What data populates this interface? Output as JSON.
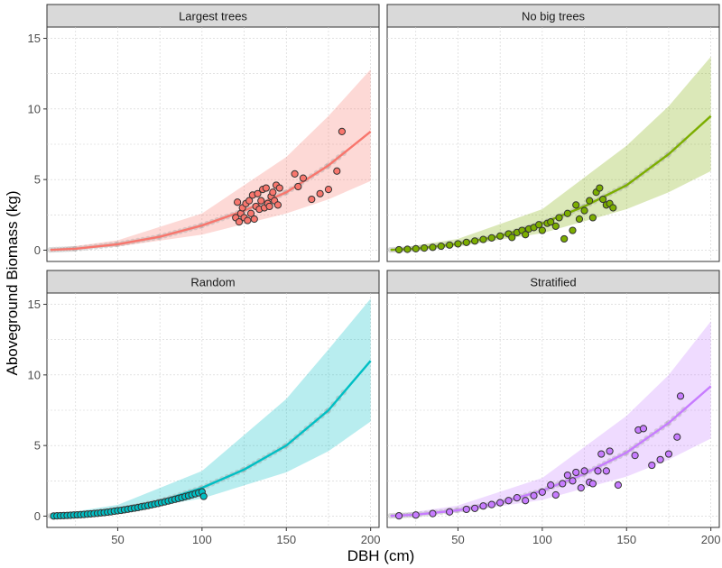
{
  "chart_data": {
    "type": "scatter",
    "xlabel": "DBH (cm)",
    "ylabel": "Aboveground Biomass (kg)",
    "xlim": [
      8,
      205
    ],
    "ylim": [
      -0.8,
      15.8
    ],
    "xticks": [
      50,
      100,
      150,
      200
    ],
    "yticks": [
      0,
      5,
      10,
      15
    ],
    "grid": true,
    "background_points_color": "#9a9a9a",
    "panels": [
      {
        "name": "Largest trees",
        "color": "#f8766d",
        "fit": [
          [
            10,
            0.02
          ],
          [
            25,
            0.1
          ],
          [
            50,
            0.42
          ],
          [
            75,
            0.95
          ],
          [
            100,
            1.75
          ],
          [
            125,
            2.8
          ],
          [
            150,
            4.1
          ],
          [
            175,
            6.0
          ],
          [
            200,
            8.4
          ]
        ],
        "band_upper": [
          [
            10,
            0.05
          ],
          [
            50,
            0.7
          ],
          [
            100,
            2.6
          ],
          [
            150,
            6.6
          ],
          [
            175,
            9.5
          ],
          [
            200,
            12.8
          ]
        ],
        "band_lower": [
          [
            10,
            0.0
          ],
          [
            50,
            0.25
          ],
          [
            100,
            1.1
          ],
          [
            150,
            2.6
          ],
          [
            175,
            3.6
          ],
          [
            200,
            4.9
          ]
        ],
        "points": [
          [
            120,
            2.3
          ],
          [
            121,
            3.4
          ],
          [
            122,
            2.0
          ],
          [
            123,
            2.6
          ],
          [
            124,
            3.0
          ],
          [
            125,
            2.3
          ],
          [
            126,
            3.3
          ],
          [
            127,
            2.1
          ],
          [
            128,
            3.5
          ],
          [
            129,
            2.6
          ],
          [
            130,
            3.9
          ],
          [
            131,
            2.2
          ],
          [
            132,
            3.1
          ],
          [
            133,
            4.0
          ],
          [
            134,
            2.9
          ],
          [
            135,
            3.5
          ],
          [
            136,
            4.3
          ],
          [
            137,
            3.0
          ],
          [
            138,
            4.4
          ],
          [
            139,
            3.3
          ],
          [
            140,
            3.1
          ],
          [
            141,
            3.8
          ],
          [
            142,
            4.1
          ],
          [
            143,
            3.5
          ],
          [
            144,
            4.6
          ],
          [
            145,
            3.2
          ],
          [
            146,
            4.4
          ],
          [
            155,
            5.4
          ],
          [
            157,
            4.5
          ],
          [
            160,
            5.1
          ],
          [
            165,
            3.6
          ],
          [
            170,
            4.0
          ],
          [
            175,
            4.3
          ],
          [
            180,
            5.6
          ],
          [
            183,
            8.4
          ]
        ]
      },
      {
        "name": "No big trees",
        "color": "#7cae00",
        "fit": [
          [
            10,
            0.02
          ],
          [
            25,
            0.1
          ],
          [
            50,
            0.45
          ],
          [
            75,
            1.0
          ],
          [
            100,
            1.9
          ],
          [
            125,
            3.1
          ],
          [
            150,
            4.6
          ],
          [
            175,
            6.8
          ],
          [
            200,
            9.5
          ]
        ],
        "band_upper": [
          [
            10,
            0.05
          ],
          [
            50,
            0.8
          ],
          [
            100,
            2.9
          ],
          [
            150,
            7.4
          ],
          [
            175,
            10.2
          ],
          [
            200,
            13.7
          ]
        ],
        "band_lower": [
          [
            10,
            0.0
          ],
          [
            50,
            0.28
          ],
          [
            100,
            1.2
          ],
          [
            150,
            2.9
          ],
          [
            175,
            4.1
          ],
          [
            200,
            5.6
          ]
        ],
        "points": [
          [
            15,
            0.03
          ],
          [
            20,
            0.06
          ],
          [
            25,
            0.1
          ],
          [
            30,
            0.15
          ],
          [
            35,
            0.2
          ],
          [
            40,
            0.28
          ],
          [
            45,
            0.36
          ],
          [
            50,
            0.45
          ],
          [
            55,
            0.55
          ],
          [
            60,
            0.65
          ],
          [
            65,
            0.76
          ],
          [
            70,
            0.87
          ],
          [
            75,
            1.0
          ],
          [
            80,
            1.15
          ],
          [
            82,
            0.9
          ],
          [
            85,
            1.25
          ],
          [
            88,
            1.4
          ],
          [
            90,
            1.1
          ],
          [
            92,
            1.5
          ],
          [
            95,
            1.6
          ],
          [
            98,
            1.8
          ],
          [
            100,
            1.4
          ],
          [
            103,
            1.9
          ],
          [
            105,
            2.0
          ],
          [
            108,
            1.7
          ],
          [
            110,
            2.3
          ],
          [
            113,
            0.8
          ],
          [
            115,
            2.6
          ],
          [
            118,
            1.4
          ],
          [
            120,
            3.2
          ],
          [
            122,
            2.2
          ],
          [
            125,
            2.8
          ],
          [
            128,
            3.5
          ],
          [
            130,
            2.3
          ],
          [
            132,
            4.1
          ],
          [
            134,
            4.4
          ],
          [
            136,
            3.6
          ],
          [
            138,
            3.2
          ],
          [
            140,
            3.3
          ],
          [
            142,
            3.0
          ]
        ]
      },
      {
        "name": "Random",
        "color": "#00bfc4",
        "fit": [
          [
            10,
            0.02
          ],
          [
            25,
            0.1
          ],
          [
            50,
            0.45
          ],
          [
            75,
            1.05
          ],
          [
            100,
            2.0
          ],
          [
            125,
            3.3
          ],
          [
            150,
            5.0
          ],
          [
            175,
            7.5
          ],
          [
            200,
            11.0
          ]
        ],
        "band_upper": [
          [
            10,
            0.05
          ],
          [
            50,
            0.8
          ],
          [
            100,
            3.2
          ],
          [
            150,
            8.3
          ],
          [
            175,
            11.8
          ],
          [
            200,
            15.4
          ]
        ],
        "band_lower": [
          [
            10,
            0.0
          ],
          [
            50,
            0.28
          ],
          [
            100,
            1.25
          ],
          [
            150,
            3.1
          ],
          [
            175,
            4.6
          ],
          [
            200,
            6.7
          ]
        ],
        "points": [
          [
            12,
            0.01
          ],
          [
            14,
            0.02
          ],
          [
            16,
            0.03
          ],
          [
            18,
            0.04
          ],
          [
            20,
            0.05
          ],
          [
            22,
            0.06
          ],
          [
            24,
            0.08
          ],
          [
            26,
            0.09
          ],
          [
            28,
            0.1
          ],
          [
            30,
            0.12
          ],
          [
            32,
            0.14
          ],
          [
            34,
            0.16
          ],
          [
            36,
            0.18
          ],
          [
            38,
            0.2
          ],
          [
            40,
            0.23
          ],
          [
            42,
            0.25
          ],
          [
            44,
            0.28
          ],
          [
            46,
            0.31
          ],
          [
            48,
            0.35
          ],
          [
            50,
            0.38
          ],
          [
            52,
            0.41
          ],
          [
            54,
            0.45
          ],
          [
            56,
            0.49
          ],
          [
            58,
            0.53
          ],
          [
            60,
            0.57
          ],
          [
            62,
            0.61
          ],
          [
            64,
            0.66
          ],
          [
            66,
            0.7
          ],
          [
            68,
            0.75
          ],
          [
            70,
            0.8
          ],
          [
            72,
            0.85
          ],
          [
            74,
            0.9
          ],
          [
            76,
            0.96
          ],
          [
            78,
            1.01
          ],
          [
            80,
            1.07
          ],
          [
            82,
            1.13
          ],
          [
            84,
            1.19
          ],
          [
            86,
            1.25
          ],
          [
            88,
            1.31
          ],
          [
            90,
            1.38
          ],
          [
            92,
            1.44
          ],
          [
            94,
            1.51
          ],
          [
            96,
            1.58
          ],
          [
            98,
            1.65
          ],
          [
            100,
            1.72
          ],
          [
            101,
            1.4
          ]
        ]
      },
      {
        "name": "Stratified",
        "color": "#c77cff",
        "fit": [
          [
            10,
            0.02
          ],
          [
            25,
            0.1
          ],
          [
            50,
            0.42
          ],
          [
            75,
            0.95
          ],
          [
            100,
            1.8
          ],
          [
            125,
            3.0
          ],
          [
            150,
            4.5
          ],
          [
            175,
            6.6
          ],
          [
            200,
            9.2
          ]
        ],
        "band_upper": [
          [
            10,
            0.05
          ],
          [
            50,
            0.75
          ],
          [
            100,
            2.7
          ],
          [
            150,
            7.1
          ],
          [
            175,
            10.0
          ],
          [
            200,
            13.8
          ]
        ],
        "band_lower": [
          [
            10,
            0.0
          ],
          [
            50,
            0.26
          ],
          [
            100,
            1.15
          ],
          [
            150,
            2.8
          ],
          [
            175,
            4.0
          ],
          [
            200,
            5.5
          ]
        ],
        "points": [
          [
            15,
            0.02
          ],
          [
            25,
            0.08
          ],
          [
            35,
            0.18
          ],
          [
            45,
            0.3
          ],
          [
            55,
            0.48
          ],
          [
            60,
            0.55
          ],
          [
            65,
            0.72
          ],
          [
            70,
            0.82
          ],
          [
            75,
            0.95
          ],
          [
            80,
            1.1
          ],
          [
            85,
            1.3
          ],
          [
            90,
            1.1
          ],
          [
            95,
            1.45
          ],
          [
            100,
            1.7
          ],
          [
            105,
            2.2
          ],
          [
            108,
            1.5
          ],
          [
            112,
            2.3
          ],
          [
            115,
            2.9
          ],
          [
            118,
            2.5
          ],
          [
            120,
            3.1
          ],
          [
            123,
            2.0
          ],
          [
            125,
            3.2
          ],
          [
            128,
            2.4
          ],
          [
            130,
            2.3
          ],
          [
            133,
            3.2
          ],
          [
            135,
            4.4
          ],
          [
            138,
            3.2
          ],
          [
            140,
            4.6
          ],
          [
            145,
            2.2
          ],
          [
            155,
            4.3
          ],
          [
            157,
            6.1
          ],
          [
            160,
            6.2
          ],
          [
            165,
            3.6
          ],
          [
            170,
            4.0
          ],
          [
            175,
            4.4
          ],
          [
            180,
            5.6
          ],
          [
            182,
            8.5
          ]
        ]
      }
    ]
  }
}
